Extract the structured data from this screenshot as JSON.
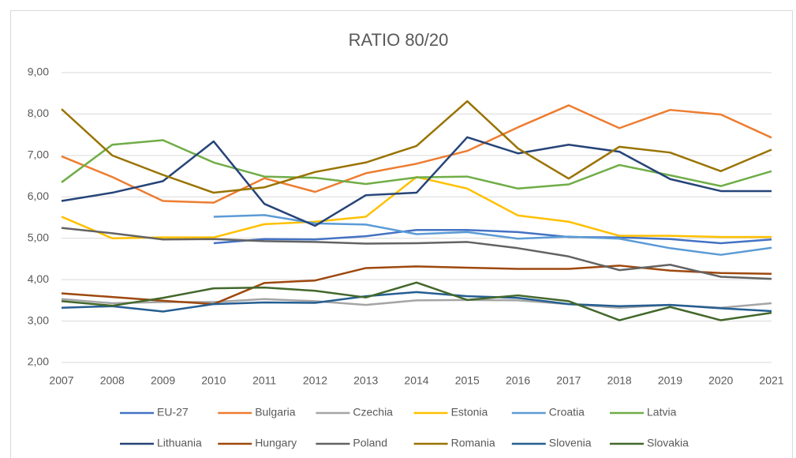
{
  "chart_data": {
    "type": "line",
    "title": "RATIO 80/20",
    "categories": [
      "2007",
      "2008",
      "2009",
      "2010",
      "2011",
      "2012",
      "2013",
      "2014",
      "2015",
      "2016",
      "2017",
      "2018",
      "2019",
      "2020",
      "2021"
    ],
    "ylim": [
      2,
      9
    ],
    "yticks": [
      {
        "value": 2,
        "label": "2,00"
      },
      {
        "value": 3,
        "label": "3,00"
      },
      {
        "value": 4,
        "label": "4,00"
      },
      {
        "value": 5,
        "label": "5,00"
      },
      {
        "value": 6,
        "label": "6,00"
      },
      {
        "value": 7,
        "label": "7,00"
      },
      {
        "value": 8,
        "label": "8,00"
      },
      {
        "value": 9,
        "label": "9,00"
      }
    ],
    "grid": true,
    "legend": "bottom",
    "series": [
      {
        "name": "EU-27",
        "color": "#4472c4",
        "values": [
          null,
          null,
          null,
          4.88,
          4.98,
          4.97,
          5.05,
          5.2,
          5.2,
          5.15,
          5.03,
          5.02,
          4.98,
          4.88,
          4.97
        ]
      },
      {
        "name": "Bulgaria",
        "color": "#ed7d31",
        "values": [
          6.98,
          6.48,
          5.9,
          5.86,
          6.45,
          6.12,
          6.57,
          6.8,
          7.11,
          7.68,
          8.21,
          7.66,
          8.1,
          7.99,
          7.43
        ]
      },
      {
        "name": "Czechia",
        "color": "#a5a5a5",
        "values": [
          3.53,
          3.43,
          3.46,
          3.46,
          3.53,
          3.48,
          3.39,
          3.5,
          3.51,
          3.5,
          3.41,
          3.32,
          3.39,
          3.32,
          3.43
        ]
      },
      {
        "name": "Estonia",
        "color": "#ffc000",
        "values": [
          5.52,
          5.0,
          5.02,
          5.02,
          5.34,
          5.4,
          5.52,
          6.48,
          6.2,
          5.55,
          5.4,
          5.06,
          5.06,
          5.03,
          5.03
        ]
      },
      {
        "name": "Croatia",
        "color": "#5b9bd5",
        "values": [
          null,
          null,
          null,
          5.52,
          5.56,
          5.36,
          5.33,
          5.1,
          5.15,
          4.99,
          5.04,
          4.99,
          4.76,
          4.6,
          4.77
        ]
      },
      {
        "name": "Latvia",
        "color": "#70ad47",
        "values": [
          6.35,
          7.26,
          7.37,
          6.83,
          6.49,
          6.46,
          6.31,
          6.47,
          6.49,
          6.2,
          6.3,
          6.77,
          6.52,
          6.26,
          6.62
        ]
      },
      {
        "name": "Lithuania",
        "color": "#264478",
        "values": [
          5.9,
          6.1,
          6.38,
          7.34,
          5.83,
          5.3,
          6.04,
          6.1,
          7.44,
          7.05,
          7.26,
          7.09,
          6.43,
          6.14,
          6.14
        ]
      },
      {
        "name": "Hungary",
        "color": "#9e480e",
        "values": [
          3.67,
          3.58,
          3.49,
          3.41,
          3.92,
          3.98,
          4.28,
          4.32,
          4.29,
          4.26,
          4.26,
          4.34,
          4.22,
          4.16,
          4.14
        ]
      },
      {
        "name": "Poland",
        "color": "#636363",
        "values": [
          5.25,
          5.12,
          4.97,
          4.98,
          4.93,
          4.91,
          4.87,
          4.88,
          4.91,
          4.76,
          4.56,
          4.23,
          4.36,
          4.07,
          4.02
        ]
      },
      {
        "name": "Romania",
        "color": "#997300",
        "values": [
          8.12,
          7.0,
          6.53,
          6.1,
          6.23,
          6.6,
          6.83,
          7.23,
          8.31,
          7.17,
          6.44,
          7.21,
          7.07,
          6.62,
          7.14
        ]
      },
      {
        "name": "Slovenia",
        "color": "#255e91",
        "values": [
          3.32,
          3.36,
          3.23,
          3.41,
          3.45,
          3.44,
          3.6,
          3.7,
          3.6,
          3.56,
          3.41,
          3.36,
          3.39,
          3.31,
          3.24
        ]
      },
      {
        "name": "Slovakia",
        "color": "#43682b",
        "values": [
          3.48,
          3.37,
          3.56,
          3.79,
          3.81,
          3.73,
          3.57,
          3.93,
          3.51,
          3.62,
          3.48,
          3.02,
          3.34,
          3.02,
          3.2
        ]
      }
    ]
  }
}
